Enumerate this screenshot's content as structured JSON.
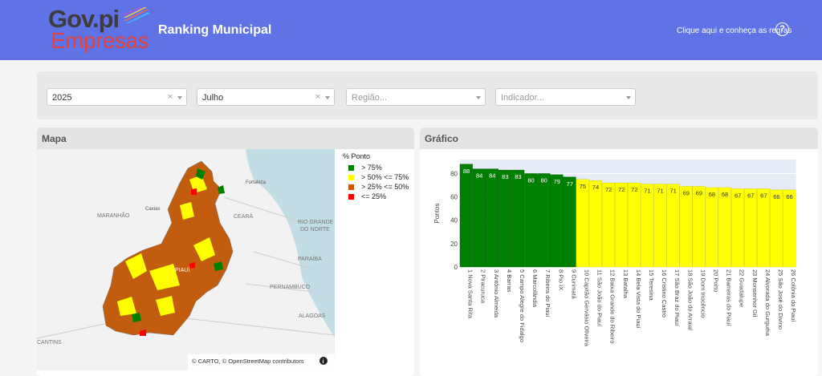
{
  "header": {
    "logo_top": "Gov.pi",
    "logo_bottom": "Empresas",
    "title": "Ranking Municipal",
    "rules_link": "Clique aqui e conheça as regras",
    "help_icon": "question-circle-icon"
  },
  "filters": {
    "year": "2025",
    "month": "Julho",
    "region_placeholder": "Região...",
    "indicator_placeholder": "Indicador...",
    "clear_symbol": "×"
  },
  "map": {
    "title": "Mapa",
    "legend_title": "% Ponto",
    "legend": [
      {
        "label": "> 75%",
        "color": "#008000"
      },
      {
        "label": "> 50% <= 75%",
        "color": "#ffff00"
      },
      {
        "label": "> 25% <= 50%",
        "color": "#d35400"
      },
      {
        "label": "<= 25%",
        "color": "#ff0000"
      }
    ],
    "labels": {
      "maranhao": "MARANHÃO",
      "ceara": "CEARÁ",
      "rio_grande_1": "RIO GRANDE",
      "rio_grande_2": "DO NORTE",
      "paraiba": "PARAÍBA",
      "pernambuco": "PERNAMBUCO",
      "alagoas": "ALAGOAS",
      "fortaleza": "Fortaleza",
      "caxias": "Caxias",
      "piaui": "PIAUÍ",
      "cantins": "CANTINS"
    },
    "attribution": "© CARTO, © OpenStreetMap contributors",
    "info_icon": "info-icon"
  },
  "chart_title": "Gráfico",
  "chart_data": {
    "type": "bar",
    "ylabel": "Pontos",
    "ylim": [
      0,
      92
    ],
    "yticks": [
      0,
      20,
      40,
      60,
      80
    ],
    "categories": [
      "1 Nova Santa Rita",
      "2 Piracuruca",
      "3 Antônio Almeida",
      "4 Barras",
      "5 Campo Alegre do Fidalgo",
      "6 Marcolândia",
      "7 Ribeira do Piauí",
      "8 Pio IX",
      "9 Curimatá",
      "10 Capitão Gervásio Oliveira",
      "11 São João do Piauí",
      "12 Baixa Grande do Ribeiro",
      "13 Batalha",
      "14 Bela Vista do Piauí",
      "15 Teresina",
      "16 Cristino Castro",
      "17 São Braz do Piauí",
      "18 São João do Arraial",
      "19 Dom Inocêncio",
      "20 Porto",
      "21 Barreiras do Piauí",
      "22 Guadalupe",
      "23 Monsenhor Gil",
      "24 Alvorada do Gurguéia",
      "25 São José do Divino",
      "26 Colônia do Piauí"
    ],
    "values": [
      88,
      84,
      84,
      83,
      83,
      80,
      80,
      79,
      77,
      75,
      74,
      72,
      72,
      72,
      71,
      71,
      71,
      69,
      69,
      68,
      68,
      67,
      67,
      67,
      66,
      66
    ],
    "colors": {
      "high": "#008000",
      "mid": "#ffff00"
    }
  }
}
